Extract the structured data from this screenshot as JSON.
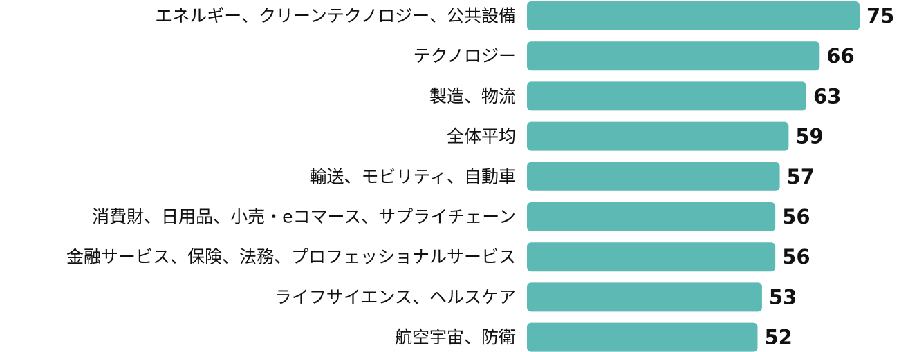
{
  "chart_data": {
    "type": "bar",
    "orientation": "horizontal",
    "categories": [
      "エネルギー、クリーンテクノロジー、公共設備",
      "テクノロジー",
      "製造、物流",
      "全体平均",
      "輸送、モビリティ、自動車",
      "消費財、日用品、小売・eコマース、サプライチェーン",
      "金融サービス、保険、法務、プロフェッショナルサービス",
      "ライフサイエンス、ヘルスケア",
      "航空宇宙、防衛"
    ],
    "values": [
      75,
      66,
      63,
      59,
      57,
      56,
      56,
      53,
      52
    ],
    "value_labels": [
      "75",
      "66",
      "63",
      "59",
      "57",
      "56",
      "56",
      "53",
      "52"
    ],
    "bar_color": "#5db9b4",
    "grid": false,
    "legend": "none",
    "xlim": [
      0,
      75
    ]
  }
}
